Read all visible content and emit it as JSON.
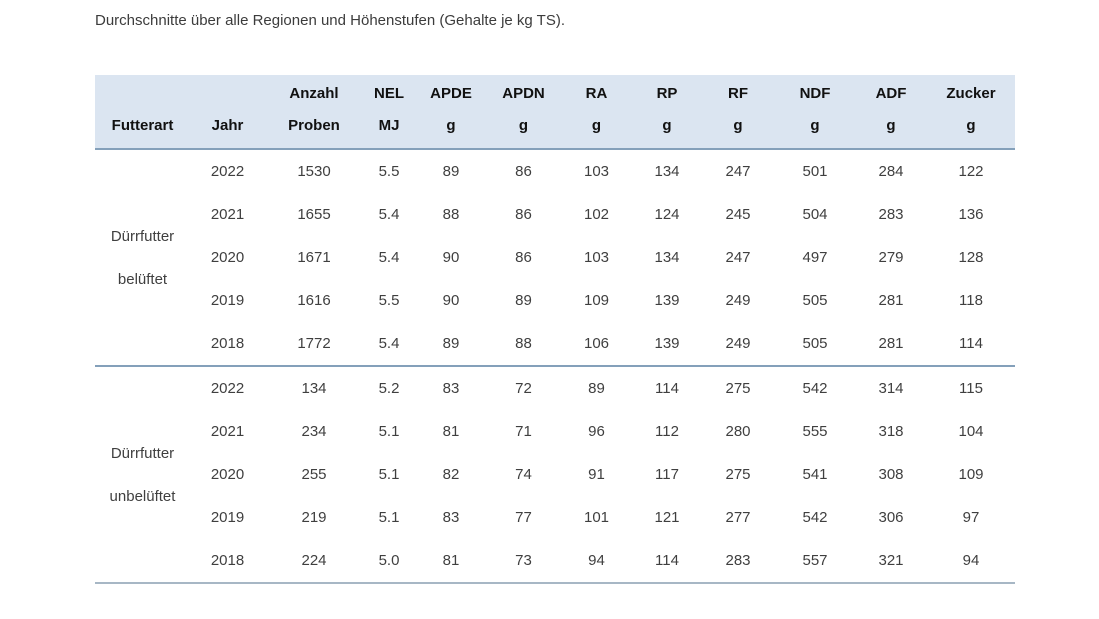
{
  "title": "Durchschnitte über alle Regionen und Höhenstufen (Gehalte je kg TS).",
  "table": {
    "columns": [
      {
        "line1": "",
        "line2": "Futterart"
      },
      {
        "line1": "",
        "line2": "Jahr"
      },
      {
        "line1": "Anzahl",
        "line2": "Proben"
      },
      {
        "line1": "NEL",
        "line2": "MJ"
      },
      {
        "line1": "APDE",
        "line2": "g"
      },
      {
        "line1": "APDN",
        "line2": "g"
      },
      {
        "line1": "RA",
        "line2": "g"
      },
      {
        "line1": "RP",
        "line2": "g"
      },
      {
        "line1": "RF",
        "line2": "g"
      },
      {
        "line1": "NDF",
        "line2": "g"
      },
      {
        "line1": "ADF",
        "line2": "g"
      },
      {
        "line1": "Zucker",
        "line2": "g"
      }
    ],
    "groups": [
      {
        "label_line1": "Dürrfutter",
        "label_line2": "belüftet",
        "rows": [
          {
            "jahr": "2022",
            "values": [
              "1530",
              "5.5",
              "89",
              "86",
              "103",
              "134",
              "247",
              "501",
              "284",
              "122"
            ]
          },
          {
            "jahr": "2021",
            "values": [
              "1655",
              "5.4",
              "88",
              "86",
              "102",
              "124",
              "245",
              "504",
              "283",
              "136"
            ]
          },
          {
            "jahr": "2020",
            "values": [
              "1671",
              "5.4",
              "90",
              "86",
              "103",
              "134",
              "247",
              "497",
              "279",
              "128"
            ]
          },
          {
            "jahr": "2019",
            "values": [
              "1616",
              "5.5",
              "90",
              "89",
              "109",
              "139",
              "249",
              "505",
              "281",
              "118"
            ]
          },
          {
            "jahr": "2018",
            "values": [
              "1772",
              "5.4",
              "89",
              "88",
              "106",
              "139",
              "249",
              "505",
              "281",
              "114"
            ]
          }
        ]
      },
      {
        "label_line1": "Dürrfutter",
        "label_line2": "unbelüftet",
        "rows": [
          {
            "jahr": "2022",
            "values": [
              "134",
              "5.2",
              "83",
              "72",
              "89",
              "114",
              "275",
              "542",
              "314",
              "115"
            ]
          },
          {
            "jahr": "2021",
            "values": [
              "234",
              "5.1",
              "81",
              "71",
              "96",
              "112",
              "280",
              "555",
              "318",
              "104"
            ]
          },
          {
            "jahr": "2020",
            "values": [
              "255",
              "5.1",
              "82",
              "74",
              "91",
              "117",
              "275",
              "541",
              "308",
              "109"
            ]
          },
          {
            "jahr": "2019",
            "values": [
              "219",
              "5.1",
              "83",
              "77",
              "101",
              "121",
              "277",
              "542",
              "306",
              "97"
            ]
          },
          {
            "jahr": "2018",
            "values": [
              "224",
              "5.0",
              "81",
              "73",
              "94",
              "114",
              "283",
              "557",
              "321",
              "94"
            ]
          }
        ]
      }
    ]
  },
  "colors": {
    "header_bg": "#dbe5f1",
    "separator": "#84a0ba",
    "bottom_border": "#a7b7c5",
    "body_text": "#3f3f3f",
    "header_text": "#111111"
  }
}
